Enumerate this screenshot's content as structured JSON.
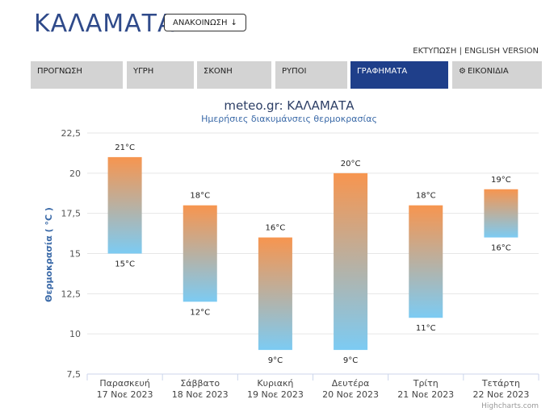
{
  "header": {
    "city": "ΚΑΛΑΜΑΤΑ",
    "announce_label": "ΑΝΑΚΟΙΝΩΣΗ",
    "print_link": "ΕΚΤΥΠΩΣΗ",
    "separator": "|",
    "english_link": "ENGLISH VERSION"
  },
  "tabs": [
    {
      "label": "ΠΡΟΓΝΩΣΗ",
      "active": false
    },
    {
      "label": "ΥΓΡΗ",
      "active": false
    },
    {
      "label": "ΣΚΟΝΗ",
      "active": false
    },
    {
      "label": "ΡΥΠΟΙ",
      "active": false
    },
    {
      "label": "ΓΡΑΦΗΜΑΤΑ",
      "active": true
    },
    {
      "label": "ΕΙΚΟΝΙΔΙΑ",
      "active": false,
      "icon": "gear-icon"
    }
  ],
  "colors": {
    "accent": "#1f3f8a",
    "bar_top": "#f7954f",
    "bar_bottom": "#7ccbf3",
    "tab_bg": "#d3d3d3",
    "axis_label": "#3b6aa8"
  },
  "chart_data": {
    "type": "bar",
    "title": "meteo.gr: ΚΑΛΑΜΑΤΑ",
    "subtitle": "Ημερήσιες διακυμάνσεις θερμοκρασίας",
    "xlabel": "",
    "ylabel": "Θερμοκρασία ( °C )",
    "ylim": [
      7.5,
      22.5
    ],
    "yticks": [
      "22,5",
      "20",
      "17,5",
      "15",
      "12,5",
      "10",
      "7,5"
    ],
    "ytick_values": [
      22.5,
      20,
      17.5,
      15,
      12.5,
      10,
      7.5
    ],
    "categories": [
      {
        "day": "Παρασκευή",
        "date": "17 Noε 2023"
      },
      {
        "day": "Σάββατο",
        "date": "18 Noε 2023"
      },
      {
        "day": "Κυριακή",
        "date": "19 Noε 2023"
      },
      {
        "day": "Δευτέρα",
        "date": "20 Noε 2023"
      },
      {
        "day": "Τρίτη",
        "date": "21 Noε 2023"
      },
      {
        "day": "Τετάρτη",
        "date": "22 Noε 2023"
      }
    ],
    "series": [
      {
        "low": 15,
        "high": 21,
        "low_label": "15°C",
        "high_label": "21°C"
      },
      {
        "low": 12,
        "high": 18,
        "low_label": "12°C",
        "high_label": "18°C"
      },
      {
        "low": 9,
        "high": 16,
        "low_label": "9°C",
        "high_label": "16°C"
      },
      {
        "low": 9,
        "high": 20,
        "low_label": "9°C",
        "high_label": "20°C"
      },
      {
        "low": 11,
        "high": 18,
        "low_label": "11°C",
        "high_label": "18°C"
      },
      {
        "low": 16,
        "high": 19,
        "low_label": "16°C",
        "high_label": "19°C"
      }
    ],
    "credit": "Highcharts.com",
    "grid": true
  }
}
